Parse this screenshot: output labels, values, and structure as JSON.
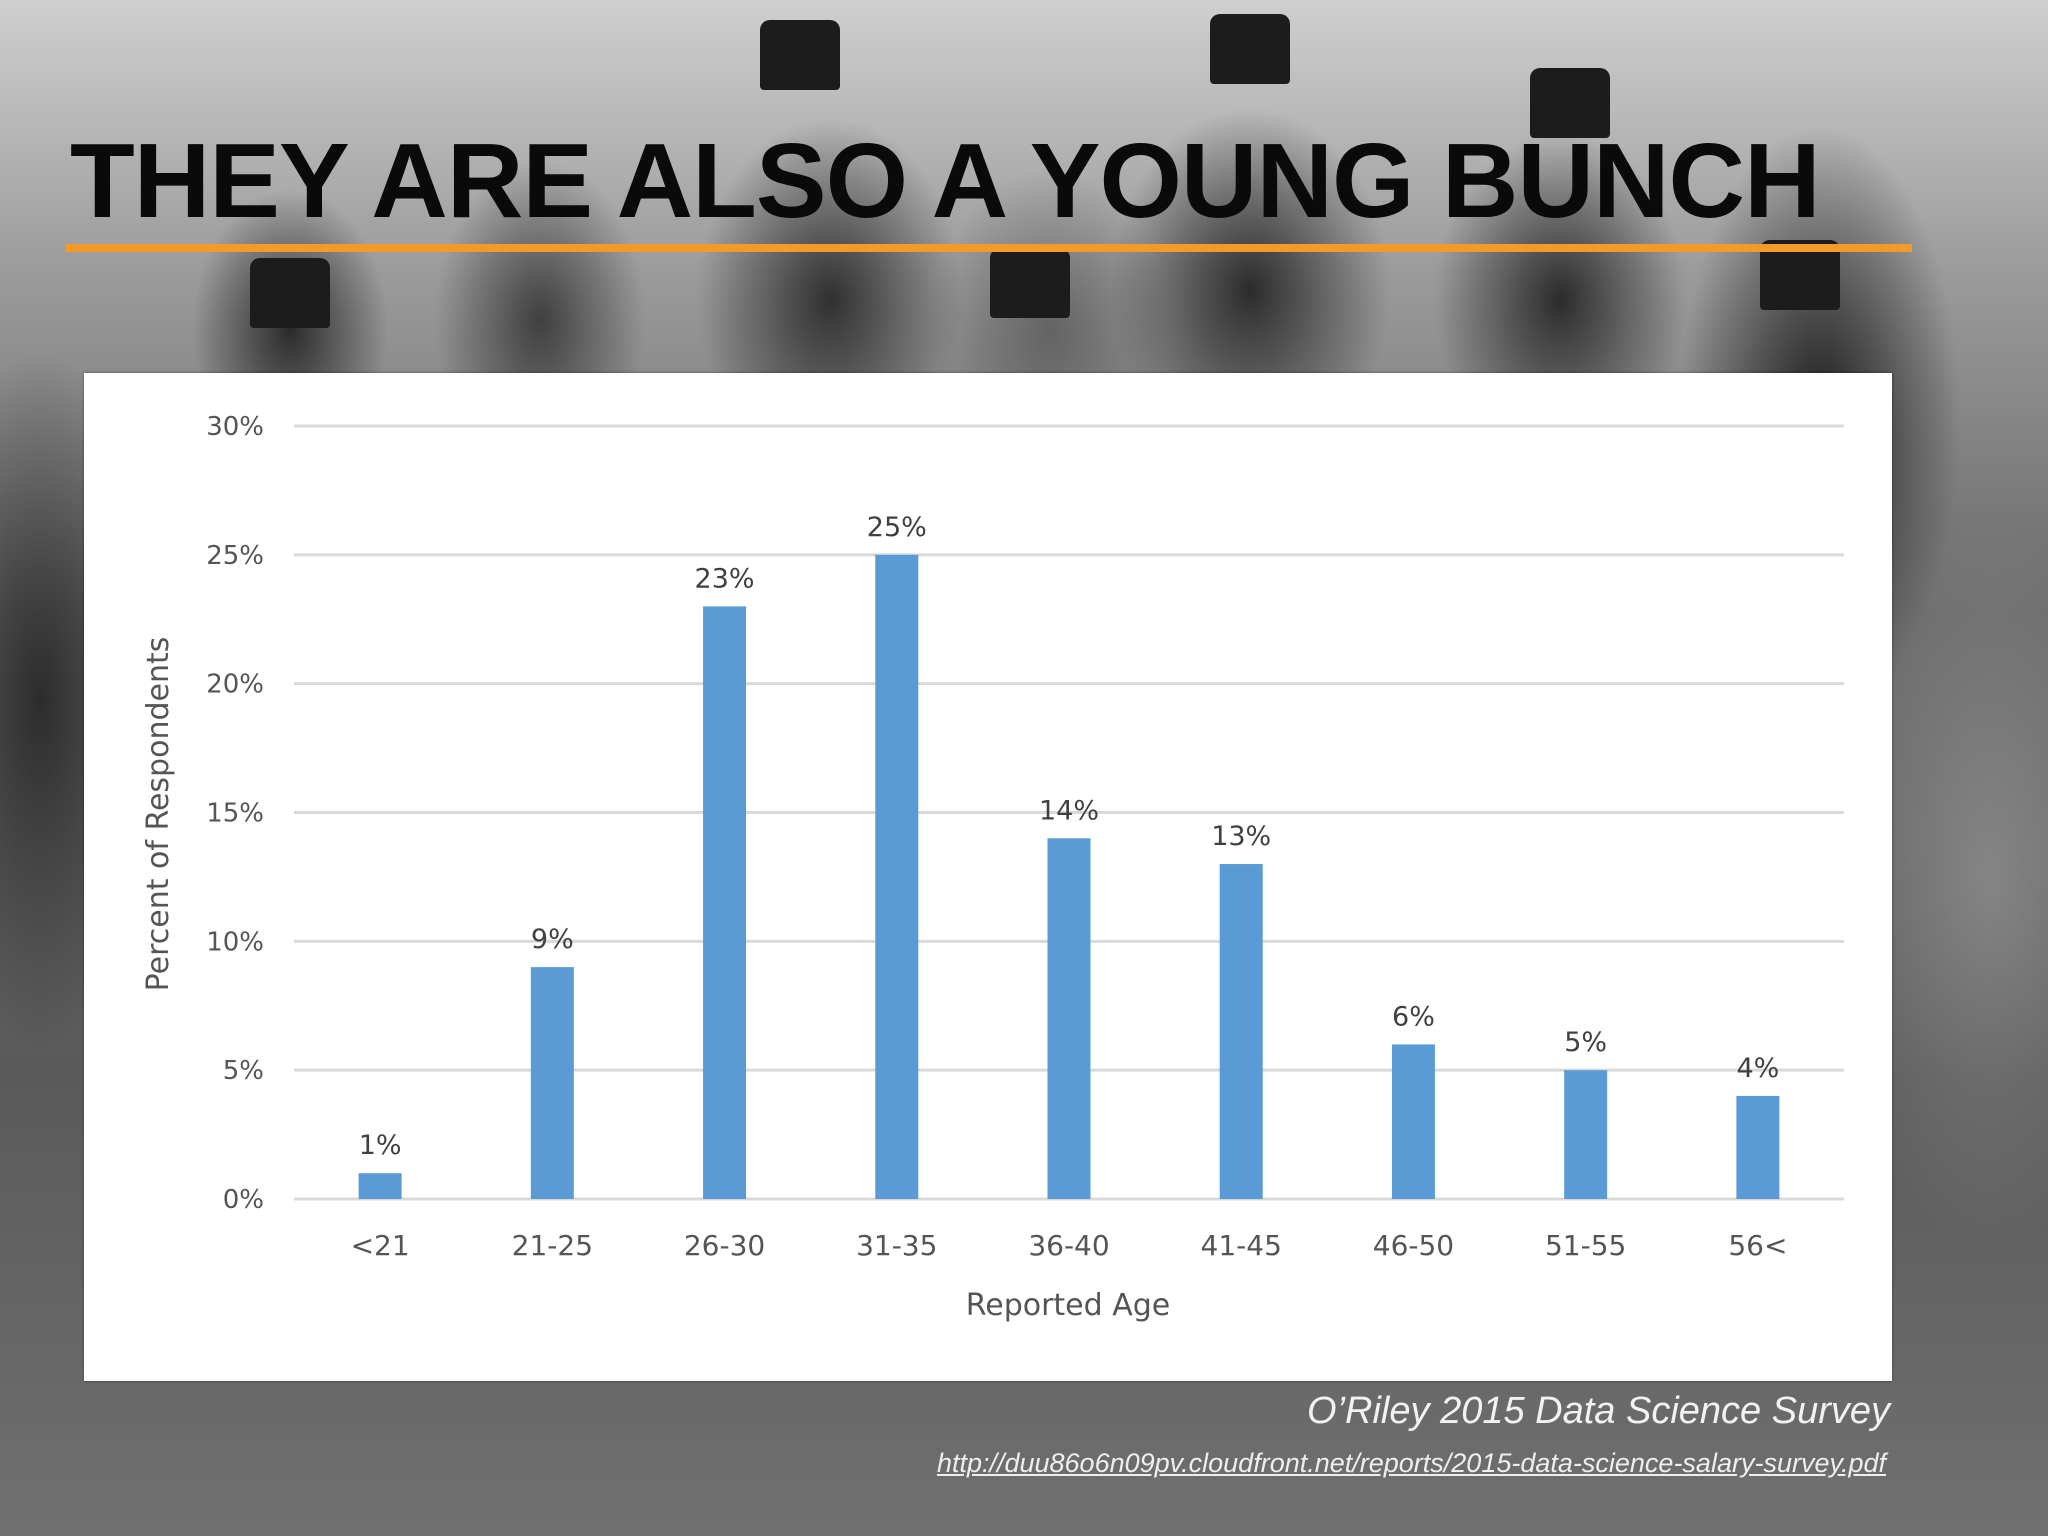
{
  "slide": {
    "title": "THEY ARE ALSO A YOUNG BUNCH",
    "accent_color": "#f39a2a",
    "source_title": "O’Riley 2015 Data Science Survey",
    "source_url": "http://duu86o6n09pv.cloudfront.net/reports/2015-data-science-salary-survey.pdf"
  },
  "chart_data": {
    "type": "bar",
    "categories": [
      "<21",
      "21-25",
      "26-30",
      "31-35",
      "36-40",
      "41-45",
      "46-50",
      "51-55",
      "56<"
    ],
    "values": [
      1,
      9,
      23,
      25,
      14,
      13,
      6,
      5,
      4
    ],
    "data_labels": [
      "1%",
      "9%",
      "23%",
      "25%",
      "14%",
      "13%",
      "6%",
      "5%",
      "4%"
    ],
    "xlabel": "Reported  Age",
    "ylabel": "Percent  of Respondents",
    "ylim": [
      0,
      30
    ],
    "yticks": [
      "0%",
      "5%",
      "10%",
      "15%",
      "20%",
      "25%",
      "30%"
    ],
    "grid": true,
    "bar_color": "#5b9bd5",
    "grid_color": "#d9d9d9"
  }
}
